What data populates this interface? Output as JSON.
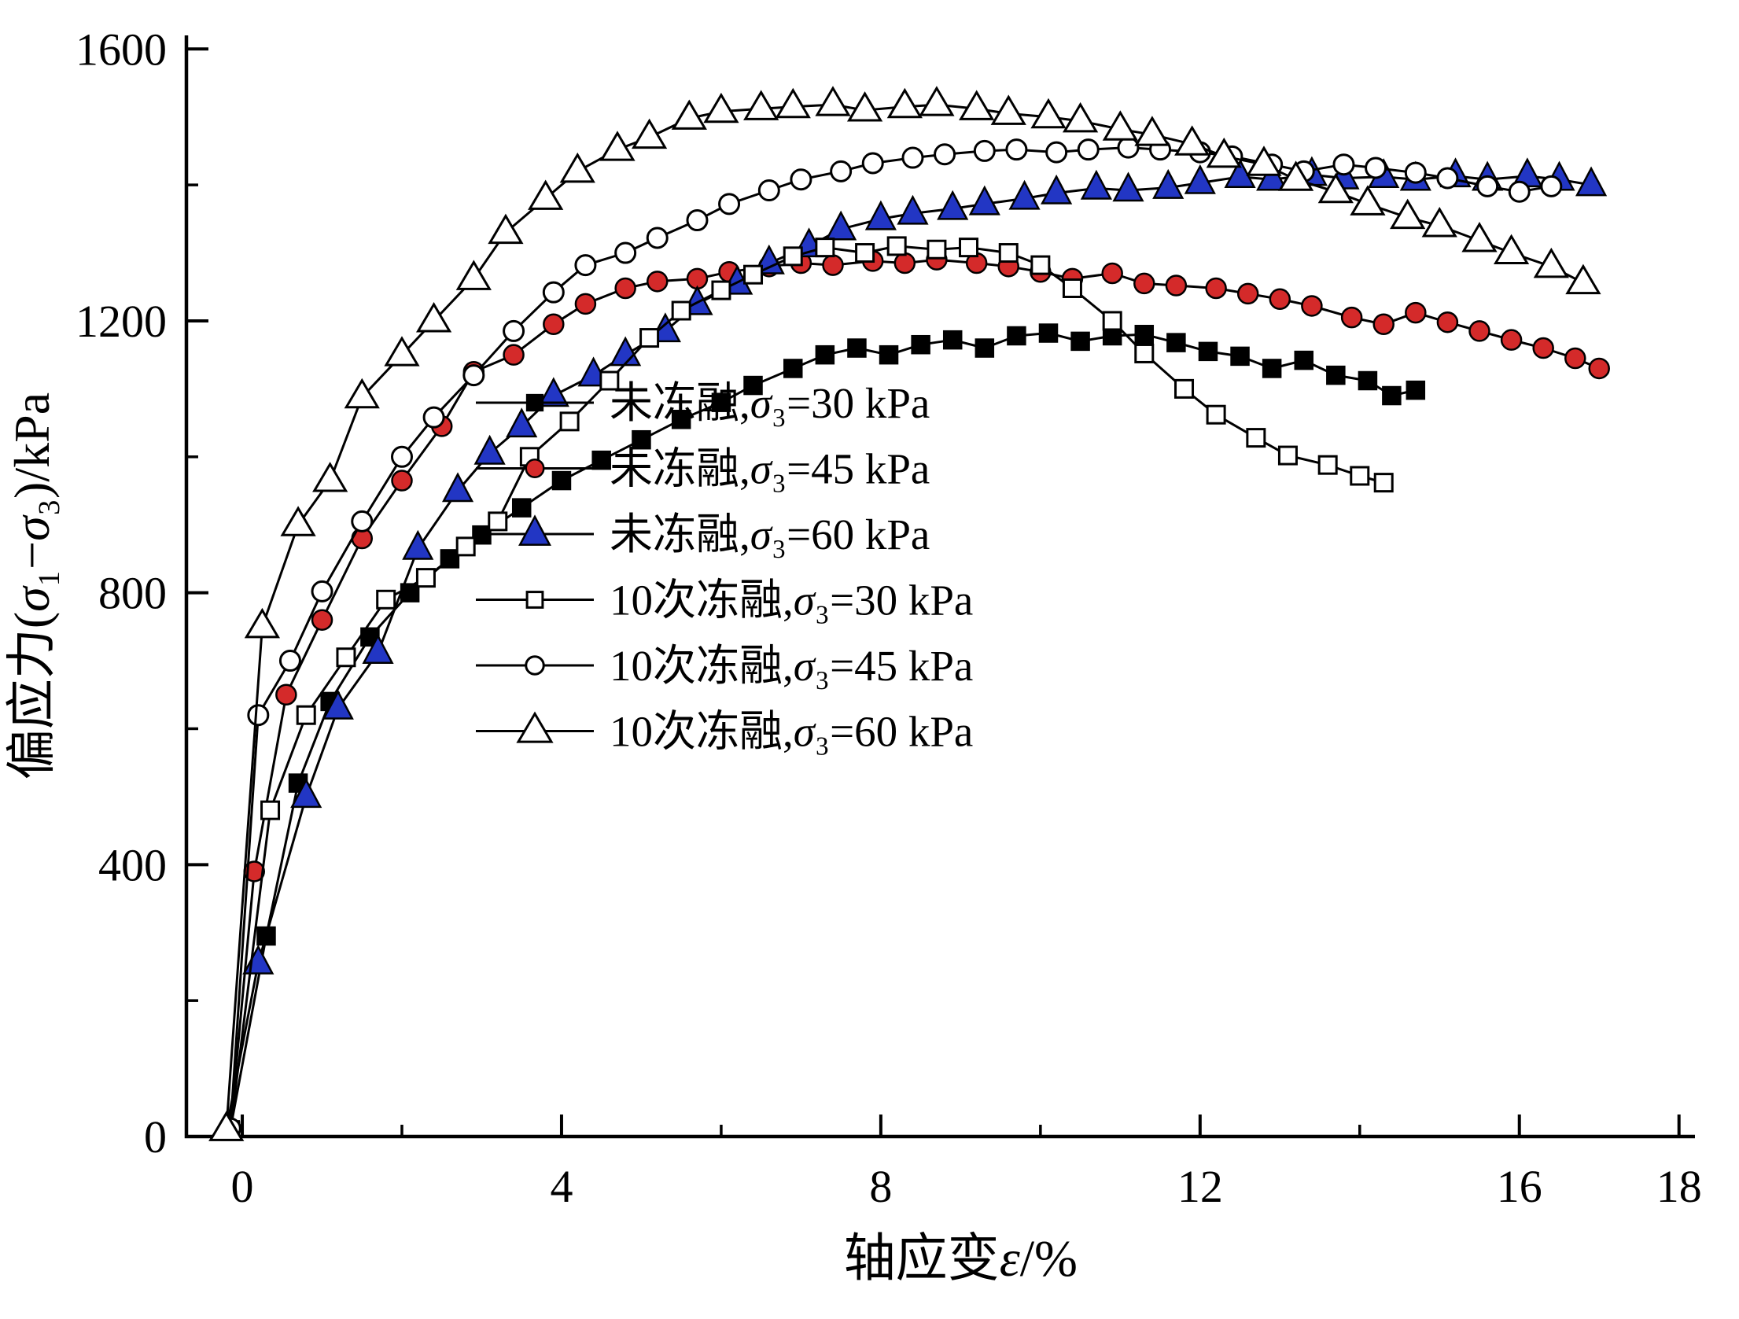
{
  "chart_data": {
    "type": "line",
    "title": "",
    "xlabel": "轴应变ε/%",
    "ylabel": "偏应力(σ₁−σ₃)/kPa",
    "xlim": [
      -0.7,
      18.2
    ],
    "ylim": [
      0,
      1620
    ],
    "x_ticks_major": [
      0,
      4,
      8,
      12,
      16,
      18
    ],
    "x_ticks_minor": [
      2,
      6,
      10,
      14
    ],
    "y_ticks_major": [
      0,
      400,
      800,
      1200,
      1600
    ],
    "y_ticks_minor": [
      200,
      600,
      1000,
      1400
    ],
    "grid": false,
    "legend_position": "inside-center",
    "line_color": "#000000",
    "series": [
      {
        "name": "未冻融,σ₃=30 kPa",
        "marker": "square",
        "filled": true,
        "color": "#000000",
        "points": [
          [
            -0.15,
            10
          ],
          [
            0.3,
            295
          ],
          [
            0.7,
            520
          ],
          [
            1.1,
            640
          ],
          [
            1.6,
            735
          ],
          [
            2.1,
            800
          ],
          [
            2.6,
            850
          ],
          [
            3.0,
            885
          ],
          [
            3.5,
            925
          ],
          [
            4.0,
            965
          ],
          [
            4.5,
            995
          ],
          [
            5.0,
            1025
          ],
          [
            5.5,
            1055
          ],
          [
            6.0,
            1080
          ],
          [
            6.4,
            1105
          ],
          [
            6.9,
            1130
          ],
          [
            7.3,
            1150
          ],
          [
            7.7,
            1160
          ],
          [
            8.1,
            1150
          ],
          [
            8.5,
            1165
          ],
          [
            8.9,
            1172
          ],
          [
            9.3,
            1160
          ],
          [
            9.7,
            1178
          ],
          [
            10.1,
            1182
          ],
          [
            10.5,
            1170
          ],
          [
            10.9,
            1178
          ],
          [
            11.3,
            1180
          ],
          [
            11.7,
            1168
          ],
          [
            12.1,
            1155
          ],
          [
            12.5,
            1148
          ],
          [
            12.9,
            1130
          ],
          [
            13.3,
            1142
          ],
          [
            13.7,
            1120
          ],
          [
            14.1,
            1112
          ],
          [
            14.4,
            1090
          ],
          [
            14.7,
            1098
          ]
        ]
      },
      {
        "name": "未冻融,σ₃=45 kPa",
        "marker": "circle",
        "filled": true,
        "color": "#d42a2a",
        "points": [
          [
            -0.15,
            12
          ],
          [
            0.15,
            390
          ],
          [
            0.55,
            650
          ],
          [
            1.0,
            760
          ],
          [
            1.5,
            880
          ],
          [
            2.0,
            965
          ],
          [
            2.5,
            1045
          ],
          [
            2.9,
            1125
          ],
          [
            3.4,
            1150
          ],
          [
            3.9,
            1195
          ],
          [
            4.3,
            1225
          ],
          [
            4.8,
            1248
          ],
          [
            5.2,
            1258
          ],
          [
            5.7,
            1262
          ],
          [
            6.1,
            1272
          ],
          [
            6.6,
            1280
          ],
          [
            7.0,
            1285
          ],
          [
            7.4,
            1282
          ],
          [
            7.9,
            1288
          ],
          [
            8.3,
            1285
          ],
          [
            8.7,
            1290
          ],
          [
            9.2,
            1285
          ],
          [
            9.6,
            1280
          ],
          [
            10.0,
            1272
          ],
          [
            10.4,
            1262
          ],
          [
            10.9,
            1270
          ],
          [
            11.3,
            1255
          ],
          [
            11.7,
            1252
          ],
          [
            12.2,
            1248
          ],
          [
            12.6,
            1240
          ],
          [
            13.0,
            1232
          ],
          [
            13.4,
            1222
          ],
          [
            13.9,
            1205
          ],
          [
            14.3,
            1195
          ],
          [
            14.7,
            1212
          ],
          [
            15.1,
            1198
          ],
          [
            15.5,
            1185
          ],
          [
            15.9,
            1172
          ],
          [
            16.3,
            1160
          ],
          [
            16.7,
            1145
          ],
          [
            17.0,
            1130
          ]
        ]
      },
      {
        "name": "未冻融,σ₃=60 kPa",
        "marker": "triangle",
        "filled": true,
        "color": "#2236c4",
        "points": [
          [
            -0.2,
            10
          ],
          [
            0.2,
            255
          ],
          [
            0.8,
            500
          ],
          [
            1.2,
            630
          ],
          [
            1.7,
            712
          ],
          [
            2.2,
            865
          ],
          [
            2.7,
            950
          ],
          [
            3.1,
            1005
          ],
          [
            3.5,
            1045
          ],
          [
            3.9,
            1090
          ],
          [
            4.4,
            1120
          ],
          [
            4.8,
            1150
          ],
          [
            5.3,
            1185
          ],
          [
            5.7,
            1225
          ],
          [
            6.2,
            1255
          ],
          [
            6.6,
            1285
          ],
          [
            7.1,
            1310
          ],
          [
            7.5,
            1335
          ],
          [
            8.0,
            1350
          ],
          [
            8.4,
            1358
          ],
          [
            8.9,
            1365
          ],
          [
            9.3,
            1372
          ],
          [
            9.8,
            1380
          ],
          [
            10.2,
            1388
          ],
          [
            10.7,
            1395
          ],
          [
            11.1,
            1392
          ],
          [
            11.6,
            1396
          ],
          [
            12.0,
            1403
          ],
          [
            12.5,
            1412
          ],
          [
            12.9,
            1408
          ],
          [
            13.4,
            1415
          ],
          [
            13.8,
            1410
          ],
          [
            14.3,
            1412
          ],
          [
            14.7,
            1408
          ],
          [
            15.2,
            1413
          ],
          [
            15.6,
            1408
          ],
          [
            16.1,
            1413
          ],
          [
            16.5,
            1408
          ],
          [
            16.9,
            1400
          ]
        ]
      },
      {
        "name": "10次冻融,σ₃=30 kPa",
        "marker": "square",
        "filled": false,
        "color": "#ffffff",
        "points": [
          [
            -0.15,
            8
          ],
          [
            0.35,
            480
          ],
          [
            0.8,
            620
          ],
          [
            1.3,
            705
          ],
          [
            1.8,
            790
          ],
          [
            2.3,
            822
          ],
          [
            2.8,
            868
          ],
          [
            3.2,
            905
          ],
          [
            3.6,
            1000
          ],
          [
            4.1,
            1052
          ],
          [
            4.6,
            1112
          ],
          [
            5.1,
            1175
          ],
          [
            5.5,
            1215
          ],
          [
            6.0,
            1245
          ],
          [
            6.4,
            1268
          ],
          [
            6.9,
            1295
          ],
          [
            7.3,
            1308
          ],
          [
            7.8,
            1300
          ],
          [
            8.2,
            1310
          ],
          [
            8.7,
            1305
          ],
          [
            9.1,
            1308
          ],
          [
            9.6,
            1300
          ],
          [
            10.0,
            1282
          ],
          [
            10.4,
            1248
          ],
          [
            10.9,
            1200
          ],
          [
            11.3,
            1152
          ],
          [
            11.8,
            1100
          ],
          [
            12.2,
            1062
          ],
          [
            12.7,
            1028
          ],
          [
            13.1,
            1002
          ],
          [
            13.6,
            988
          ],
          [
            14.0,
            972
          ],
          [
            14.3,
            962
          ]
        ]
      },
      {
        "name": "10次冻融,σ₃=45 kPa",
        "marker": "circle",
        "filled": false,
        "color": "#ffffff",
        "points": [
          [
            -0.15,
            12
          ],
          [
            0.2,
            620
          ],
          [
            0.6,
            700
          ],
          [
            1.0,
            802
          ],
          [
            1.5,
            905
          ],
          [
            2.0,
            1000
          ],
          [
            2.4,
            1058
          ],
          [
            2.9,
            1120
          ],
          [
            3.4,
            1185
          ],
          [
            3.9,
            1242
          ],
          [
            4.3,
            1282
          ],
          [
            4.8,
            1300
          ],
          [
            5.2,
            1322
          ],
          [
            5.7,
            1348
          ],
          [
            6.1,
            1372
          ],
          [
            6.6,
            1392
          ],
          [
            7.0,
            1408
          ],
          [
            7.5,
            1420
          ],
          [
            7.9,
            1432
          ],
          [
            8.4,
            1440
          ],
          [
            8.8,
            1445
          ],
          [
            9.3,
            1450
          ],
          [
            9.7,
            1452
          ],
          [
            10.2,
            1448
          ],
          [
            10.6,
            1452
          ],
          [
            11.1,
            1455
          ],
          [
            11.5,
            1452
          ],
          [
            12.0,
            1448
          ],
          [
            12.4,
            1442
          ],
          [
            12.9,
            1430
          ],
          [
            13.3,
            1420
          ],
          [
            13.8,
            1430
          ],
          [
            14.2,
            1425
          ],
          [
            14.7,
            1418
          ],
          [
            15.1,
            1410
          ],
          [
            15.6,
            1398
          ],
          [
            16.0,
            1390
          ],
          [
            16.4,
            1398
          ]
        ]
      },
      {
        "name": "10次冻融,σ₃=60 kPa",
        "marker": "triangle",
        "filled": false,
        "color": "#ffffff",
        "points": [
          [
            -0.2,
            10
          ],
          [
            0.25,
            750
          ],
          [
            0.7,
            900
          ],
          [
            1.1,
            965
          ],
          [
            1.5,
            1088
          ],
          [
            2.0,
            1150
          ],
          [
            2.4,
            1200
          ],
          [
            2.9,
            1262
          ],
          [
            3.3,
            1330
          ],
          [
            3.8,
            1380
          ],
          [
            4.2,
            1420
          ],
          [
            4.7,
            1452
          ],
          [
            5.1,
            1470
          ],
          [
            5.6,
            1498
          ],
          [
            6.0,
            1508
          ],
          [
            6.5,
            1512
          ],
          [
            6.9,
            1515
          ],
          [
            7.4,
            1518
          ],
          [
            7.8,
            1510
          ],
          [
            8.3,
            1515
          ],
          [
            8.7,
            1518
          ],
          [
            9.2,
            1512
          ],
          [
            9.6,
            1505
          ],
          [
            10.1,
            1500
          ],
          [
            10.5,
            1494
          ],
          [
            11.0,
            1482
          ],
          [
            11.4,
            1474
          ],
          [
            11.9,
            1460
          ],
          [
            12.3,
            1442
          ],
          [
            12.8,
            1430
          ],
          [
            13.2,
            1408
          ],
          [
            13.7,
            1390
          ],
          [
            14.1,
            1372
          ],
          [
            14.6,
            1352
          ],
          [
            15.0,
            1340
          ],
          [
            15.5,
            1318
          ],
          [
            15.9,
            1300
          ],
          [
            16.4,
            1280
          ],
          [
            16.8,
            1256
          ]
        ]
      }
    ]
  }
}
